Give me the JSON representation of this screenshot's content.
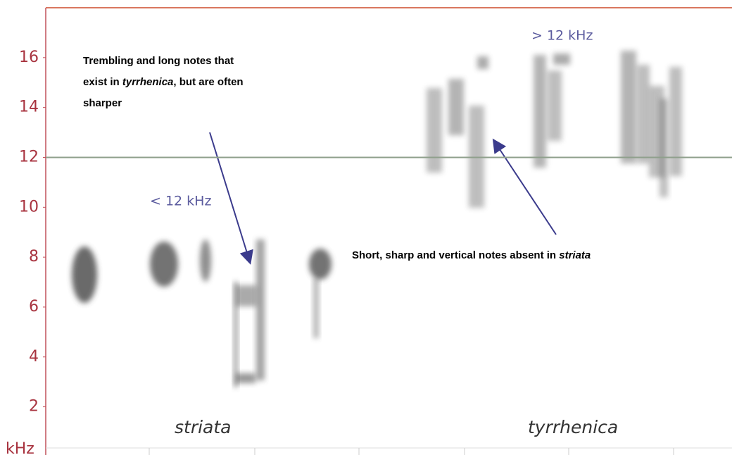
{
  "chart_data": {
    "type": "spectrogram",
    "y_label": "kHz",
    "ylim": [
      1,
      18
    ],
    "yticks": [
      2,
      4,
      6,
      8,
      10,
      12,
      14,
      16
    ],
    "reference_line": 12,
    "range_labels": [
      "< 12 kHz",
      "> 12 kHz"
    ],
    "categories": [
      "striata",
      "tyrrhenica"
    ],
    "annotations": [
      {
        "lines": [
          [
            "Trembling and long notes that"
          ],
          [
            "exist in ",
            "tyrrhenica",
            ", but are often"
          ],
          [
            "sharper"
          ]
        ]
      },
      {
        "lines": [
          [
            "Short, sharp and vertical notes absent in ",
            "striata"
          ]
        ]
      }
    ]
  }
}
